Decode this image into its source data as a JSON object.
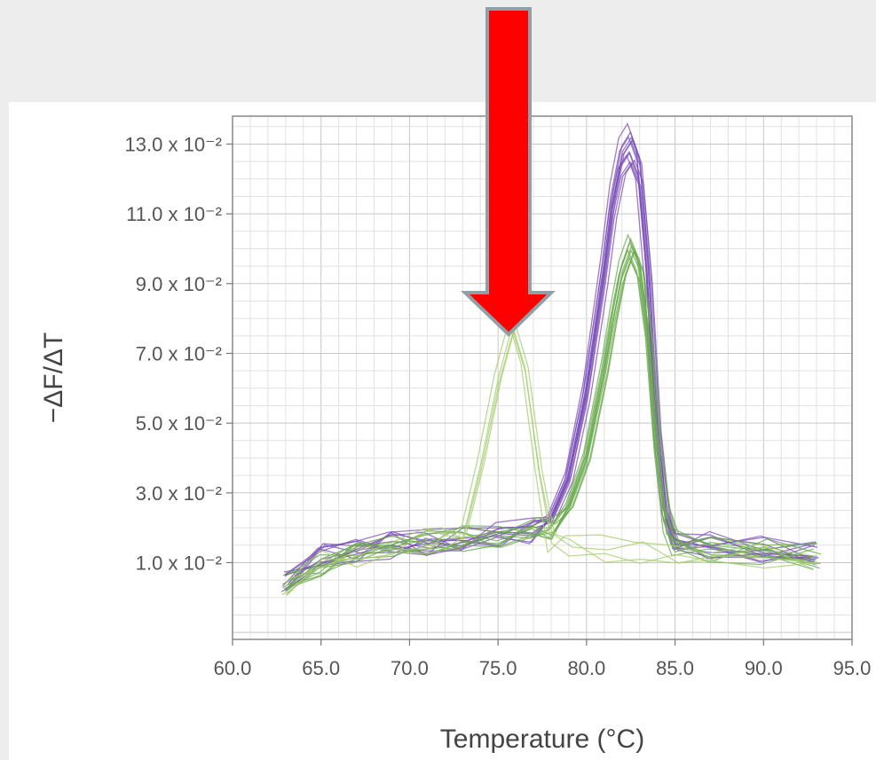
{
  "chart_data": {
    "type": "line",
    "xlabel": "Temperature (°C)",
    "ylabel": "−ΔF/ΔT",
    "xlim": [
      60.0,
      95.0
    ],
    "ylim": [
      -1.2,
      13.8
    ],
    "x_ticks": [
      60.0,
      65.0,
      70.0,
      75.0,
      80.0,
      85.0,
      90.0,
      95.0
    ],
    "x_tick_labels": [
      "60.0",
      "65.0",
      "70.0",
      "75.0",
      "80.0",
      "85.0",
      "90.0",
      "95.0"
    ],
    "y_ticks": [
      1.0,
      3.0,
      5.0,
      7.0,
      9.0,
      11.0,
      13.0
    ],
    "y_tick_labels": [
      "1.0 x 10⁻²",
      "3.0 x 10⁻²",
      "5.0 x 10⁻²",
      "7.0 x 10⁻²",
      "9.0 x 10⁻²",
      "11.0 x 10⁻²",
      "13.0 x 10⁻²"
    ],
    "grid": true,
    "series_groups": [
      {
        "color": "#7b4fb8",
        "count": 12,
        "x": [
          63,
          65,
          67,
          69,
          71,
          73,
          75,
          77,
          78,
          79,
          80,
          81,
          81.5,
          82,
          82.5,
          83,
          83.5,
          84,
          84.5,
          85,
          87,
          90,
          93
        ],
        "y": [
          0.5,
          1.2,
          1.3,
          1.5,
          1.6,
          1.7,
          1.8,
          1.9,
          2.3,
          3.5,
          6.0,
          9.5,
          11.5,
          12.8,
          13.2,
          12.5,
          9.5,
          5.0,
          2.5,
          1.7,
          1.5,
          1.4,
          1.3
        ]
      },
      {
        "color": "#6aaa4e",
        "count": 10,
        "x": [
          63,
          65,
          67,
          69,
          71,
          73,
          75,
          77,
          78,
          79,
          80,
          81,
          81.5,
          82,
          82.5,
          83,
          83.5,
          84,
          84.5,
          85,
          87,
          90,
          93
        ],
        "y": [
          0.4,
          1.0,
          1.2,
          1.4,
          1.6,
          1.7,
          1.8,
          1.9,
          2.0,
          2.6,
          4.0,
          6.5,
          8.0,
          9.3,
          10.0,
          9.4,
          7.5,
          4.2,
          2.2,
          1.6,
          1.4,
          1.3,
          1.2
        ]
      },
      {
        "color": "#a6cc6e",
        "count": 4,
        "x": [
          63,
          65,
          67,
          69,
          71,
          72,
          73,
          74,
          75,
          75.8,
          76.5,
          77.3,
          78,
          79,
          81,
          83,
          85,
          87,
          90,
          93
        ],
        "y": [
          0.4,
          1.0,
          1.2,
          1.4,
          1.6,
          1.7,
          2.0,
          3.8,
          6.3,
          7.8,
          6.6,
          3.6,
          1.7,
          1.5,
          1.4,
          1.3,
          1.3,
          1.2,
          1.2,
          1.2
        ]
      }
    ]
  }
}
